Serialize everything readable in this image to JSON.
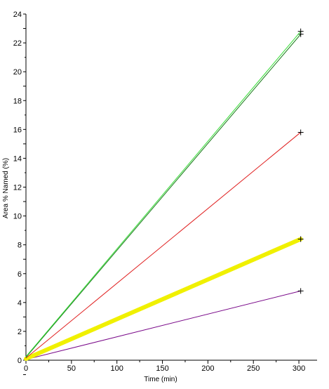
{
  "chart_data": {
    "type": "line",
    "title": "",
    "xlabel": "Time (min)",
    "ylabel": "Area % Named (%)",
    "xlim": [
      0,
      320
    ],
    "ylim": [
      0,
      24
    ],
    "x_ticks": [
      "0",
      "50",
      "100",
      "150",
      "200",
      "250",
      "300"
    ],
    "y_ticks": [
      "0",
      "2",
      "4",
      "6",
      "8",
      "10",
      "12",
      "14",
      "16",
      "18",
      "20",
      "22",
      "24"
    ],
    "grid": false,
    "legend": "none",
    "series": [
      {
        "color": "#7a0a8a",
        "width": 1,
        "x": [
          0,
          302
        ],
        "y": [
          0.05,
          4.8
        ]
      },
      {
        "color": "#f0f000",
        "width": 6,
        "x": [
          0,
          302
        ],
        "y": [
          0.1,
          8.4
        ]
      },
      {
        "color": "#e02020",
        "width": 1,
        "x": [
          0,
          302
        ],
        "y": [
          0.15,
          15.8
        ]
      },
      {
        "color": "#1a7a1a",
        "width": 1,
        "x": [
          0,
          302
        ],
        "y": [
          0.2,
          22.6
        ]
      },
      {
        "color": "#33dd33",
        "width": 1,
        "x": [
          0,
          302
        ],
        "y": [
          0.25,
          22.8
        ]
      }
    ]
  }
}
